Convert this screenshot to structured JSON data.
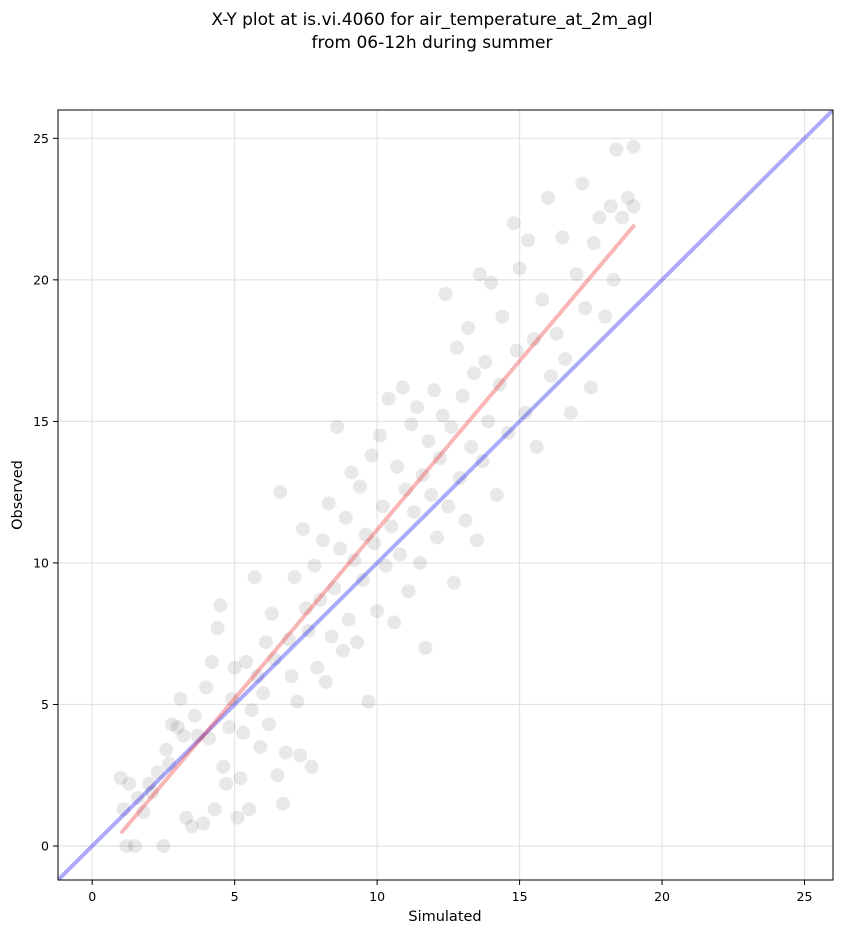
{
  "chart_data": {
    "type": "scatter",
    "title": [
      "X-Y plot at is.vi.4060 for air_temperature_at_2m_agl",
      "from 06-12h during summer"
    ],
    "xlabel": "Simulated",
    "ylabel": "Observed",
    "xlim": [
      -1.2,
      26
    ],
    "ylim": [
      -1.2,
      26
    ],
    "xticks": [
      0,
      5,
      10,
      15,
      20,
      25
    ],
    "yticks": [
      0,
      5,
      10,
      15,
      20,
      25
    ],
    "grid": true,
    "legend": "none",
    "colors": {
      "points": "#000000",
      "one_to_one_line": "#0000ee",
      "fit_line": "#ee2222"
    },
    "lines": [
      {
        "role": "one-to-one",
        "x": [
          -1.2,
          26
        ],
        "y": [
          -1.2,
          26
        ],
        "color": "#0000ee"
      },
      {
        "role": "linear-fit",
        "x": [
          1.05,
          19.0
        ],
        "y": [
          0.5,
          21.9
        ],
        "color": "#ee2222"
      }
    ],
    "points": [
      [
        1.0,
        2.4
      ],
      [
        1.1,
        1.3
      ],
      [
        1.2,
        0.0
      ],
      [
        1.5,
        0.0
      ],
      [
        1.3,
        2.2
      ],
      [
        1.6,
        1.7
      ],
      [
        1.8,
        1.2
      ],
      [
        2.0,
        2.2
      ],
      [
        2.1,
        1.9
      ],
      [
        2.3,
        2.6
      ],
      [
        2.5,
        0.0
      ],
      [
        2.6,
        3.4
      ],
      [
        2.7,
        2.9
      ],
      [
        2.8,
        4.3
      ],
      [
        3.0,
        4.2
      ],
      [
        3.1,
        5.2
      ],
      [
        3.2,
        3.9
      ],
      [
        3.3,
        1.0
      ],
      [
        3.5,
        0.7
      ],
      [
        3.6,
        4.6
      ],
      [
        3.7,
        3.9
      ],
      [
        3.9,
        0.8
      ],
      [
        4.0,
        5.6
      ],
      [
        4.1,
        3.8
      ],
      [
        4.2,
        6.5
      ],
      [
        4.3,
        1.3
      ],
      [
        4.4,
        7.7
      ],
      [
        4.5,
        8.5
      ],
      [
        4.6,
        2.8
      ],
      [
        4.7,
        2.2
      ],
      [
        4.8,
        4.2
      ],
      [
        4.9,
        5.2
      ],
      [
        5.0,
        6.3
      ],
      [
        5.1,
        1.0
      ],
      [
        5.2,
        2.4
      ],
      [
        5.3,
        4.0
      ],
      [
        5.4,
        6.5
      ],
      [
        5.5,
        1.3
      ],
      [
        5.6,
        4.8
      ],
      [
        5.7,
        9.5
      ],
      [
        5.8,
        6.0
      ],
      [
        5.9,
        3.5
      ],
      [
        6.0,
        5.4
      ],
      [
        6.1,
        7.2
      ],
      [
        6.2,
        4.3
      ],
      [
        6.3,
        8.2
      ],
      [
        6.4,
        6.6
      ],
      [
        6.5,
        2.5
      ],
      [
        6.6,
        12.5
      ],
      [
        6.7,
        1.5
      ],
      [
        6.8,
        3.3
      ],
      [
        6.9,
        7.3
      ],
      [
        7.0,
        6.0
      ],
      [
        7.1,
        9.5
      ],
      [
        7.2,
        5.1
      ],
      [
        7.3,
        3.2
      ],
      [
        7.4,
        11.2
      ],
      [
        7.5,
        8.4
      ],
      [
        7.6,
        7.6
      ],
      [
        7.7,
        2.8
      ],
      [
        7.8,
        9.9
      ],
      [
        7.9,
        6.3
      ],
      [
        8.0,
        8.7
      ],
      [
        8.1,
        10.8
      ],
      [
        8.2,
        5.8
      ],
      [
        8.3,
        12.1
      ],
      [
        8.4,
        7.4
      ],
      [
        8.5,
        9.1
      ],
      [
        8.6,
        14.8
      ],
      [
        8.7,
        10.5
      ],
      [
        8.8,
        6.9
      ],
      [
        8.9,
        11.6
      ],
      [
        9.0,
        8.0
      ],
      [
        9.1,
        13.2
      ],
      [
        9.2,
        10.1
      ],
      [
        9.3,
        7.2
      ],
      [
        9.4,
        12.7
      ],
      [
        9.5,
        9.4
      ],
      [
        9.6,
        11.0
      ],
      [
        9.7,
        5.1
      ],
      [
        9.8,
        13.8
      ],
      [
        9.9,
        10.7
      ],
      [
        10.0,
        8.3
      ],
      [
        10.1,
        14.5
      ],
      [
        10.2,
        12.0
      ],
      [
        10.3,
        9.9
      ],
      [
        10.4,
        15.8
      ],
      [
        10.5,
        11.3
      ],
      [
        10.6,
        7.9
      ],
      [
        10.7,
        13.4
      ],
      [
        10.8,
        10.3
      ],
      [
        10.9,
        16.2
      ],
      [
        11.0,
        12.6
      ],
      [
        11.1,
        9.0
      ],
      [
        11.2,
        14.9
      ],
      [
        11.3,
        11.8
      ],
      [
        11.4,
        15.5
      ],
      [
        11.5,
        10.0
      ],
      [
        11.6,
        13.1
      ],
      [
        11.7,
        7.0
      ],
      [
        11.8,
        14.3
      ],
      [
        11.9,
        12.4
      ],
      [
        12.0,
        16.1
      ],
      [
        12.1,
        10.9
      ],
      [
        12.2,
        13.7
      ],
      [
        12.3,
        15.2
      ],
      [
        12.4,
        19.5
      ],
      [
        12.5,
        12.0
      ],
      [
        12.6,
        14.8
      ],
      [
        12.7,
        9.3
      ],
      [
        12.8,
        17.6
      ],
      [
        12.9,
        13.0
      ],
      [
        13.0,
        15.9
      ],
      [
        13.1,
        11.5
      ],
      [
        13.2,
        18.3
      ],
      [
        13.3,
        14.1
      ],
      [
        13.4,
        16.7
      ],
      [
        13.5,
        10.8
      ],
      [
        13.6,
        20.2
      ],
      [
        13.7,
        13.6
      ],
      [
        13.8,
        17.1
      ],
      [
        13.9,
        15.0
      ],
      [
        14.0,
        19.9
      ],
      [
        14.2,
        12.4
      ],
      [
        14.3,
        16.3
      ],
      [
        14.4,
        18.7
      ],
      [
        14.6,
        14.6
      ],
      [
        14.8,
        22.0
      ],
      [
        14.9,
        17.5
      ],
      [
        15.0,
        20.4
      ],
      [
        15.2,
        15.3
      ],
      [
        15.3,
        21.4
      ],
      [
        15.5,
        17.9
      ],
      [
        15.6,
        14.1
      ],
      [
        15.8,
        19.3
      ],
      [
        16.0,
        22.9
      ],
      [
        16.1,
        16.6
      ],
      [
        16.3,
        18.1
      ],
      [
        16.5,
        21.5
      ],
      [
        16.6,
        17.2
      ],
      [
        16.8,
        15.3
      ],
      [
        17.0,
        20.2
      ],
      [
        17.2,
        23.4
      ],
      [
        17.3,
        19.0
      ],
      [
        17.5,
        16.2
      ],
      [
        17.6,
        21.3
      ],
      [
        17.8,
        22.2
      ],
      [
        18.0,
        18.7
      ],
      [
        18.2,
        22.6
      ],
      [
        18.3,
        20.0
      ],
      [
        18.4,
        24.6
      ],
      [
        18.6,
        22.2
      ],
      [
        18.8,
        22.9
      ],
      [
        19.0,
        24.7
      ],
      [
        19.0,
        22.6
      ]
    ]
  }
}
